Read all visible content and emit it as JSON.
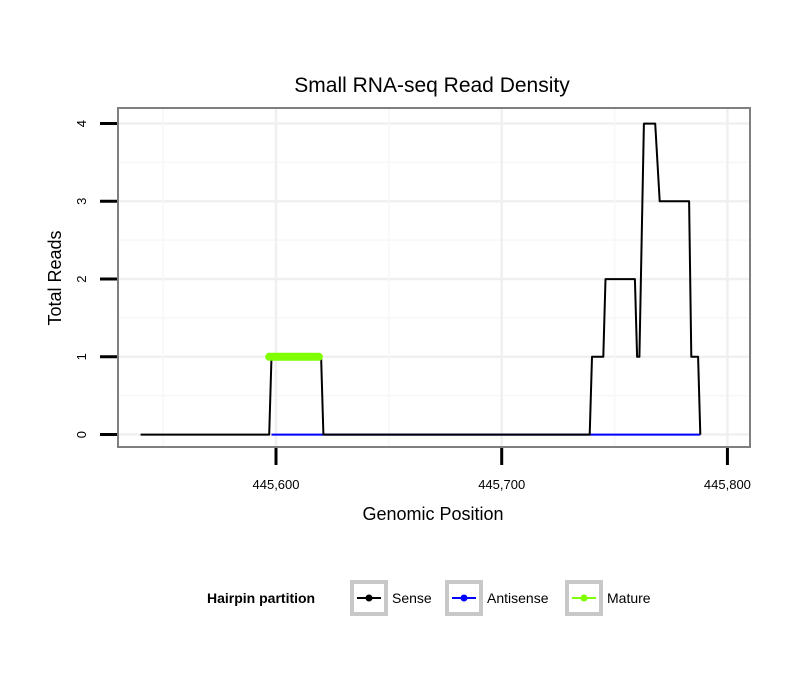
{
  "chart_data": {
    "type": "line",
    "title": "Small RNA-seq Read Density",
    "xlabel": "Genomic Position",
    "ylabel": "Total Reads",
    "xlim": [
      445530,
      445810
    ],
    "ylim": [
      -0.16,
      4.2
    ],
    "x_ticks": [
      445600,
      445700,
      445800
    ],
    "x_tick_labels": [
      "445,600",
      "445,700",
      "445,800"
    ],
    "y_ticks": [
      0,
      1,
      2,
      3,
      4
    ],
    "y_tick_labels": [
      "0",
      "1",
      "2",
      "3",
      "4"
    ],
    "grid": true,
    "legend": {
      "title": "Hairpin partition",
      "position": "bottom",
      "entries": [
        "Sense",
        "Antisense",
        "Mature"
      ]
    },
    "series": [
      {
        "name": "Sense",
        "color": "#000000",
        "points": [
          [
            445540,
            0
          ],
          [
            445597,
            0
          ],
          [
            445598,
            1
          ],
          [
            445620,
            1
          ],
          [
            445621,
            0
          ],
          [
            445739,
            0
          ],
          [
            445740,
            1
          ],
          [
            445745,
            1
          ],
          [
            445746,
            2
          ],
          [
            445759,
            2
          ],
          [
            445760,
            1
          ],
          [
            445761,
            1
          ],
          [
            445763,
            4
          ],
          [
            445768,
            4
          ],
          [
            445770,
            3
          ],
          [
            445783,
            3
          ],
          [
            445784,
            1
          ],
          [
            445787,
            1
          ],
          [
            445788,
            0
          ]
        ]
      },
      {
        "name": "Antisense",
        "color": "#0000ff",
        "points": [
          [
            445598,
            0
          ],
          [
            445620,
            0
          ],
          [
            445740,
            0
          ],
          [
            445788,
            0
          ]
        ]
      },
      {
        "name": "Mature",
        "color": "#7fff00",
        "points": [
          [
            445597,
            1
          ],
          [
            445619,
            1
          ]
        ]
      }
    ]
  }
}
